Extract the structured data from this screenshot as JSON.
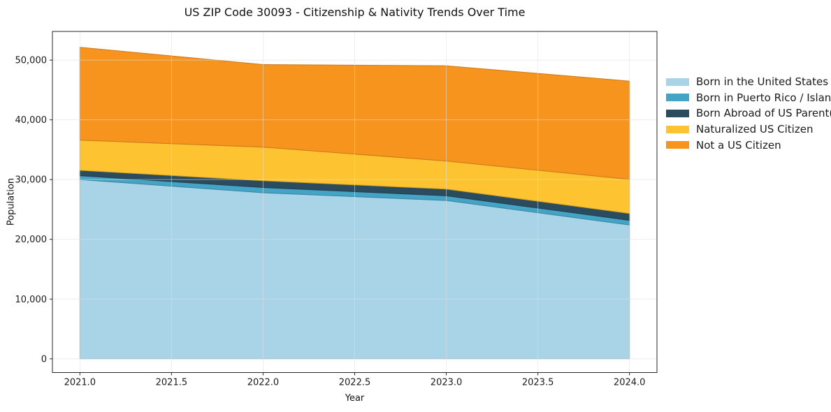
{
  "title": "US ZIP Code 30093 - Citizenship & Nativity Trends Over Time",
  "chart_data": {
    "type": "area",
    "stacked": true,
    "title": "US ZIP Code 30093 - Citizenship & Nativity Trends Over Time",
    "xlabel": "Year",
    "ylabel": "Population",
    "x": [
      2021,
      2022,
      2023,
      2024
    ],
    "series": [
      {
        "name": "Born in the United States",
        "color": "#A9D4E8",
        "values": [
          30000,
          27800,
          26500,
          22400
        ]
      },
      {
        "name": "Born in Puerto Rico / Islands",
        "color": "#44A4C5",
        "values": [
          650,
          880,
          780,
          780
        ]
      },
      {
        "name": "Born Abroad of US Parent(s)",
        "color": "#2B4B5E",
        "values": [
          900,
          1130,
          1140,
          1150
        ]
      },
      {
        "name": "Naturalized US Citizen",
        "color": "#FDC330",
        "values": [
          5050,
          5620,
          4680,
          5700
        ]
      },
      {
        "name": "Not a US Citizen",
        "color": "#F7941E",
        "values": [
          15550,
          13820,
          15950,
          16450
        ]
      }
    ],
    "totals_by_year": [
      52150,
      49250,
      49050,
      46480
    ],
    "x_ticks": [
      "2021.0",
      "2021.5",
      "2022.0",
      "2022.5",
      "2023.0",
      "2023.5",
      "2024.0"
    ],
    "x_tick_values": [
      2021,
      2021.5,
      2022,
      2022.5,
      2023,
      2023.5,
      2024
    ],
    "y_ticks": [
      "0",
      "10,000",
      "20,000",
      "30,000",
      "40,000",
      "50,000"
    ],
    "y_tick_values": [
      0,
      10000,
      20000,
      30000,
      40000,
      50000
    ],
    "xlim": [
      2020.85,
      2024.15
    ],
    "ylim": [
      -2300,
      54800
    ],
    "grid": true,
    "legend_position": "right"
  }
}
